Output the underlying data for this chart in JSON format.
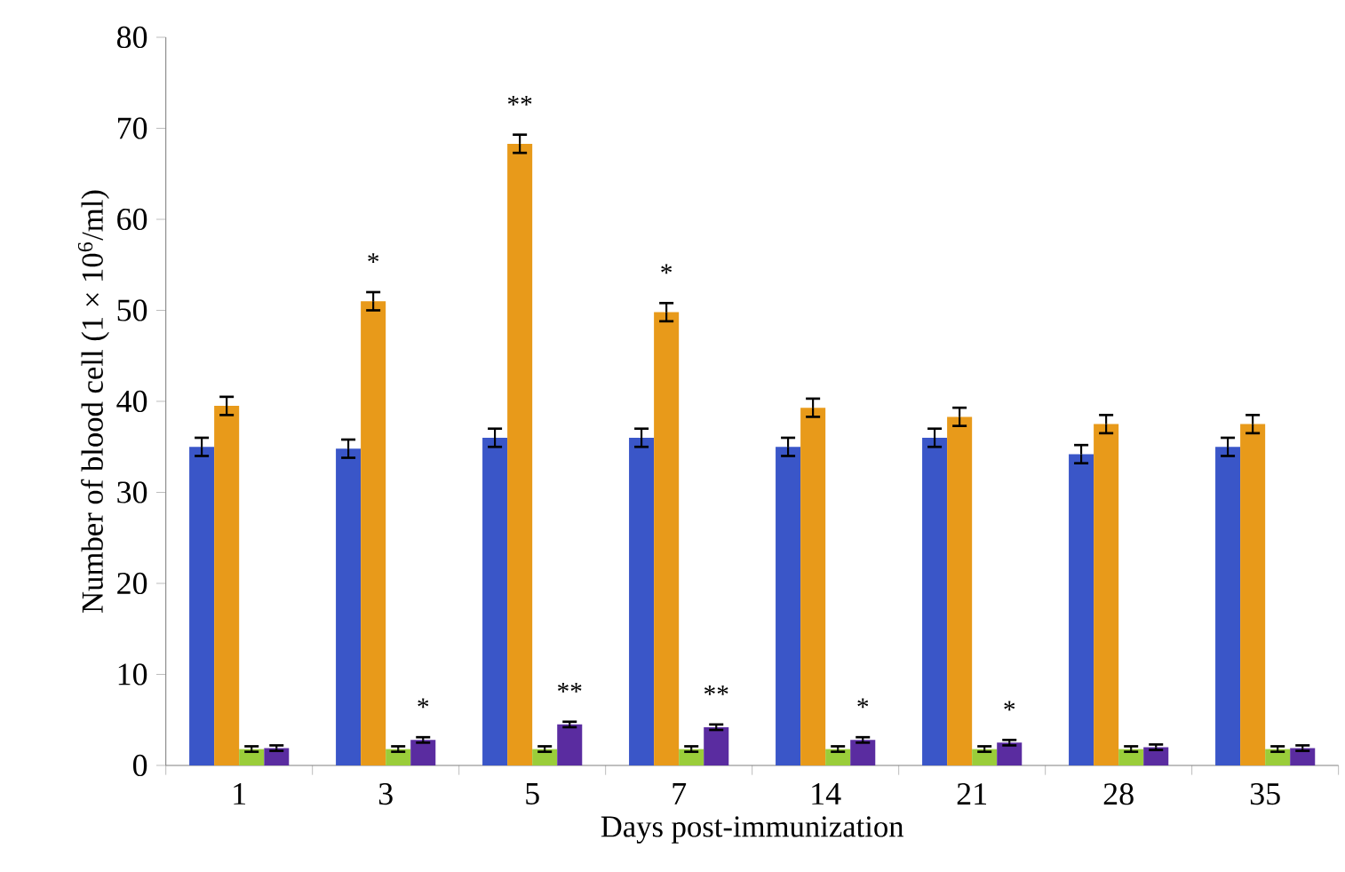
{
  "chart_data": {
    "type": "bar",
    "xlabel": "Days post-immunization",
    "ylabel": "Number of blood cell (1 × 10$^{6}$/ml)",
    "categories": [
      "1",
      "3",
      "5",
      "7",
      "14",
      "21",
      "28",
      "35"
    ],
    "series": [
      {
        "color": "#3a56c8",
        "values": [
          35,
          34.8,
          36,
          36,
          35,
          36,
          34.2,
          35
        ],
        "errors": [
          1,
          1,
          1,
          1,
          1,
          1,
          1,
          1
        ]
      },
      {
        "color": "#e89a1a",
        "values": [
          39.5,
          51,
          68.3,
          49.8,
          39.3,
          38.3,
          37.5,
          37.5
        ],
        "errors": [
          1,
          1,
          1,
          1,
          1,
          1,
          1,
          1
        ]
      },
      {
        "color": "#9acd3a",
        "values": [
          1.8,
          1.8,
          1.8,
          1.8,
          1.8,
          1.8,
          1.8,
          1.8
        ],
        "errors": [
          0.3,
          0.3,
          0.3,
          0.3,
          0.3,
          0.3,
          0.3,
          0.3
        ]
      },
      {
        "color": "#5a2ca0",
        "values": [
          1.9,
          2.8,
          4.5,
          4.2,
          2.8,
          2.5,
          2,
          1.9
        ],
        "errors": [
          0.3,
          0.3,
          0.3,
          0.3,
          0.3,
          0.3,
          0.3,
          0.3
        ]
      }
    ],
    "ylim": [
      0,
      80
    ],
    "yticks": [
      0,
      10,
      20,
      30,
      40,
      50,
      60,
      70,
      80
    ],
    "grid": false,
    "annotations": [
      {
        "text": "*",
        "x": "3",
        "y": 51
      },
      {
        "text": "*",
        "x": "3",
        "y": 2.8
      },
      {
        "text": "**",
        "x": "5",
        "y": 68.3
      },
      {
        "text": "**",
        "x": "5",
        "y": 4.5
      },
      {
        "text": "*",
        "x": "7",
        "y": 49.8
      },
      {
        "text": "**",
        "x": "7",
        "y": 4.2
      },
      {
        "text": "*",
        "x": "14",
        "y": 2.8
      },
      {
        "text": "*",
        "x": "21",
        "y": 2.5
      }
    ]
  }
}
